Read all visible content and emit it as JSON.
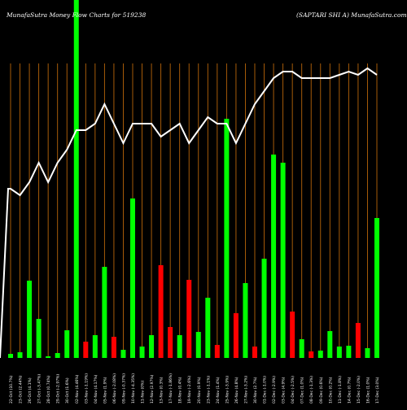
{
  "header": {
    "left_title": "MunafaSutra  Money Flow  Charts for 519238",
    "right_title": "(SAPTARI                                SHI A) MunafaSutra.com"
  },
  "colors": {
    "background": "#000000",
    "gridline": "#b8650a",
    "up_bar": "#00ff00",
    "down_bar": "#ff0000",
    "line": "#ffffff",
    "tick_text": "#ffffff"
  },
  "chart_data": {
    "type": "bar",
    "grid": true,
    "categories": [
      "22-Oct (10.7%)",
      "23-Oct (2.44%)",
      "26-Oct (4.1%)",
      "27-Oct (-3.47%)",
      "28-Oct (0.74%)",
      "29-Oct (-2.97%)",
      "30-Oct (1.6%)",
      "02-Nov (4.46%)",
      "03-Nov (-1.19%)",
      "04-Nov (4.17%)",
      "05-Nov (1.9%)",
      "06-Nov (-2.08%)",
      "09-Nov (-0.37%)",
      "10-Nov (-4.35%)",
      "11-Nov (0%)",
      "12-Nov (2.97%)",
      "13-Nov (0.3%)",
      "17-Nov (-1.86%)",
      "18-Nov (0.4%)",
      "19-Nov (-2.6%)",
      "20-Nov (0.9%)",
      "23-Nov (-1.1%)",
      "24-Nov (1.4%)",
      "25-Nov (-3.9%)",
      "26-Nov (4.8%)",
      "27-Nov (-3.2%)",
      "30-Nov (2.7%)",
      "01-Dec (-1.0%)",
      "02-Dec (-2.9%)",
      "03-Dec (4.9%)",
      "04-Dec (-2.5%)",
      "07-Dec (1.0%)",
      "08-Dec (-1.3%)",
      "09-Dec (0.6%)",
      "10-Dec (0.2%)",
      "11-Dec (-1.8%)",
      "14-Dec (0.7%)",
      "15-Dec (-2.0%)",
      "16-Dec (1.0%)",
      "17-Dec (3.0%)"
    ],
    "bar_directions": [
      "up",
      "up",
      "up",
      "up",
      "up",
      "up",
      "up",
      "up",
      "down",
      "up",
      "up",
      "down",
      "up",
      "up",
      "up",
      "up",
      "down",
      "down",
      "up",
      "down",
      "up",
      "up",
      "down",
      "up",
      "down",
      "up",
      "down",
      "up",
      "up",
      "up",
      "down",
      "up",
      "down",
      "up",
      "up",
      "up",
      "up",
      "down",
      "up",
      "up"
    ],
    "series": [
      {
        "values": [
          5,
          7,
          95,
          48,
          2,
          6,
          34,
          440,
          20,
          28,
          112,
          26,
          10,
          196,
          14,
          28,
          114,
          38,
          28,
          96,
          32,
          74,
          16,
          294,
          55,
          92,
          14,
          122,
          250,
          240,
          57,
          23,
          8,
          9,
          33,
          14,
          15,
          43,
          12,
          172
        ]
      },
      {
        "values": [
          52,
          50,
          54,
          60,
          54,
          60,
          64,
          70,
          70,
          72,
          78,
          72,
          66,
          72,
          72,
          72,
          68,
          70,
          72,
          66,
          70,
          74,
          72,
          72,
          66,
          72,
          78,
          82,
          86,
          88,
          88,
          86,
          86,
          86,
          86,
          87,
          88,
          87,
          89,
          87
        ]
      }
    ],
    "ylim_bars": [
      0,
      440
    ],
    "ylim_line": [
      0,
      100
    ]
  }
}
